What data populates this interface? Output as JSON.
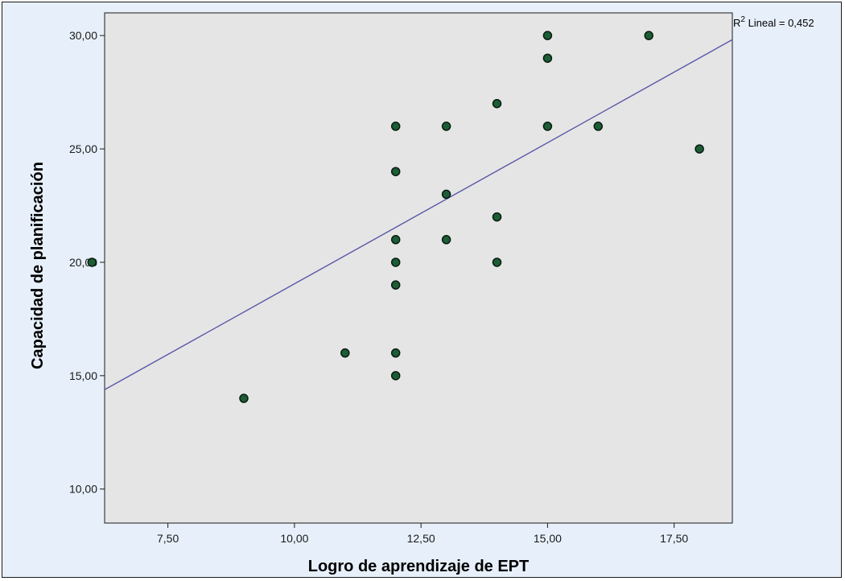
{
  "chart_data": {
    "type": "scatter",
    "title": "",
    "xlabel": "Logro de aprendizaje de EPT",
    "ylabel": "Capacidad de planificación",
    "xlim": [
      6.25,
      18.65
    ],
    "ylim": [
      8.5,
      31.0
    ],
    "x_ticks": [
      7.5,
      10.0,
      12.5,
      15.0,
      17.5
    ],
    "x_tick_labels": [
      "7,50",
      "10,00",
      "12,50",
      "15,00",
      "17,50"
    ],
    "y_ticks": [
      10,
      15,
      20,
      25,
      30
    ],
    "y_tick_labels": [
      "10,00",
      "15,00",
      "20,00",
      "25,00",
      "30,00"
    ],
    "points": [
      {
        "x": 6,
        "y": 20
      },
      {
        "x": 9,
        "y": 14
      },
      {
        "x": 11,
        "y": 16
      },
      {
        "x": 12,
        "y": 26
      },
      {
        "x": 12,
        "y": 24
      },
      {
        "x": 12,
        "y": 21
      },
      {
        "x": 12,
        "y": 20
      },
      {
        "x": 12,
        "y": 19
      },
      {
        "x": 12,
        "y": 16
      },
      {
        "x": 12,
        "y": 15
      },
      {
        "x": 13,
        "y": 26
      },
      {
        "x": 13,
        "y": 23
      },
      {
        "x": 13,
        "y": 21
      },
      {
        "x": 14,
        "y": 27
      },
      {
        "x": 14,
        "y": 22
      },
      {
        "x": 14,
        "y": 20
      },
      {
        "x": 15,
        "y": 30
      },
      {
        "x": 15,
        "y": 29
      },
      {
        "x": 15,
        "y": 26
      },
      {
        "x": 16,
        "y": 26
      },
      {
        "x": 17,
        "y": 30
      },
      {
        "x": 18,
        "y": 25
      }
    ],
    "fit_line": {
      "type": "linear",
      "intercept": 6.6,
      "slope": 1.245
    },
    "r2_label_prefix": "R",
    "r2_label_superscript": "2",
    "r2_label_suffix": " Lineal = 0,452",
    "grid": false,
    "legend": "none",
    "colors": {
      "plot_background": "#e5e5e5",
      "outer_background": "#e7f0fa",
      "point_fill": "#1b5e35",
      "point_stroke": "#0a1a10",
      "fit_line": "#5a58a8"
    }
  }
}
